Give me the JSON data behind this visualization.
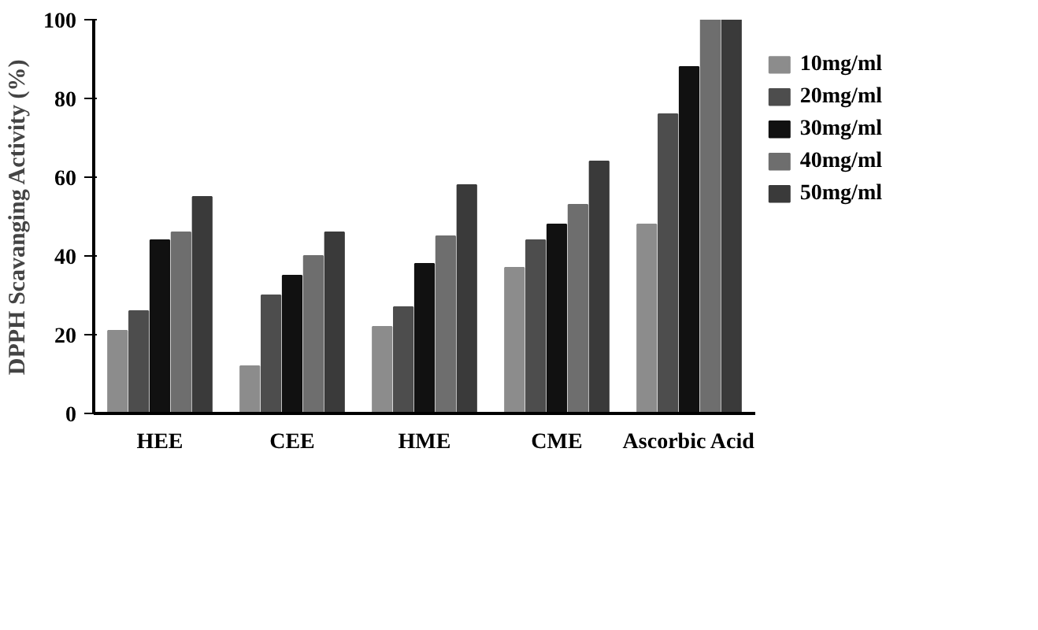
{
  "chart_data": {
    "type": "bar",
    "ylabel": "DPPH Scavanging Activity (%)",
    "categories": [
      "HEE",
      "CEE",
      "HME",
      "CME",
      "Ascorbic Acid"
    ],
    "series": [
      {
        "name": "10mg/ml",
        "color": "#8c8c8c",
        "values": [
          21,
          12,
          22,
          37,
          48
        ]
      },
      {
        "name": "20mg/ml",
        "color": "#4d4d4d",
        "values": [
          26,
          30,
          27,
          44,
          76
        ]
      },
      {
        "name": "30mg/ml",
        "color": "#111111",
        "values": [
          44,
          35,
          38,
          48,
          88
        ]
      },
      {
        "name": "40mg/ml",
        "color": "#6e6e6e",
        "values": [
          46,
          40,
          45,
          53,
          100
        ]
      },
      {
        "name": "50mg/ml",
        "color": "#3a3a3a",
        "values": [
          55,
          46,
          58,
          64,
          100
        ]
      }
    ],
    "ylim": [
      0,
      100
    ],
    "yticks": [
      0,
      20,
      40,
      60,
      80,
      100
    ],
    "grid": false,
    "legend": "right"
  }
}
